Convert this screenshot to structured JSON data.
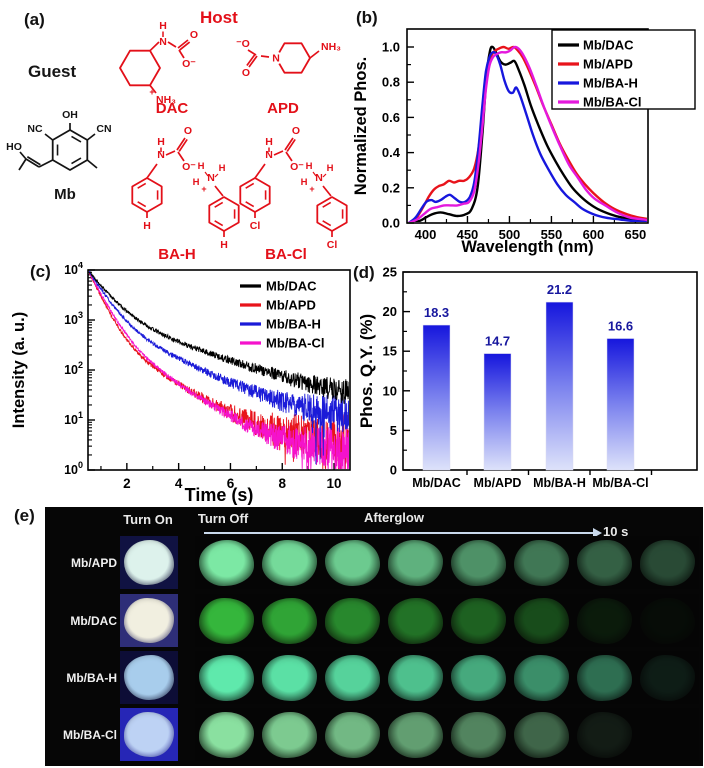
{
  "figure": {
    "panel_labels": {
      "a": "(a)",
      "b": "(b)",
      "c": "(c)",
      "d": "(d)",
      "e": "(e)"
    }
  },
  "panel_a": {
    "host_label": "Host",
    "guest_label": "Guest",
    "host_color": "#e31019",
    "guest_color": "#151515",
    "molecules": {
      "dac": "DAC",
      "apd": "APD",
      "mb": "Mb",
      "bah": "BA-H",
      "bacl": "BA-Cl"
    },
    "structures": {
      "dac": {
        "h": "H",
        "n": "N",
        "o": "O",
        "ominus": "O⁻",
        "plus": "+",
        "nh3": "NH₃"
      },
      "apd": {
        "ominus": "⁻O",
        "o": "O",
        "n": "N",
        "nh3": "NH₃"
      },
      "mb": {
        "oh": "OH",
        "nc": "NC",
        "cn": "CN",
        "ho": "HO"
      },
      "bah": {
        "h": "H",
        "n": "N",
        "o": "O",
        "ominus": "O⁻",
        "h1": "H",
        "h2": "H",
        "h3": "H",
        "n2": "N",
        "plus": "+",
        "para1": "H",
        "para2": "H"
      },
      "bacl": {
        "h": "H",
        "n": "N",
        "o": "O",
        "ominus": "O⁻",
        "h1": "H",
        "h2": "H",
        "h3": "H",
        "n2": "N",
        "plus": "+",
        "para1": "Cl",
        "para2": "Cl"
      }
    }
  },
  "chart_data": [
    {
      "id": "b",
      "type": "line",
      "xlabel": "Wavelength (nm)",
      "ylabel": "Normalized Phos.",
      "xlim": [
        378,
        665
      ],
      "ylim": [
        0,
        1.05
      ],
      "xticks": [
        400,
        450,
        500,
        550,
        600,
        650
      ],
      "yticks": [
        0.0,
        0.2,
        0.4,
        0.6,
        0.8,
        1.0
      ],
      "legend_position": "top-right",
      "legend_border": true,
      "series": [
        {
          "name": "Mb/DAC",
          "color": "#000000",
          "points": [
            [
              380,
              0
            ],
            [
              392,
              0.01
            ],
            [
              400,
              0.03
            ],
            [
              408,
              0.05
            ],
            [
              418,
              0.06
            ],
            [
              428,
              0.05
            ],
            [
              438,
              0.04
            ],
            [
              448,
              0.05
            ],
            [
              455,
              0.08
            ],
            [
              462,
              0.2
            ],
            [
              468,
              0.52
            ],
            [
              473,
              0.85
            ],
            [
              477,
              0.98
            ],
            [
              480,
              1.0
            ],
            [
              484,
              0.97
            ],
            [
              489,
              0.92
            ],
            [
              495,
              0.9
            ],
            [
              501,
              0.91
            ],
            [
              506,
              0.92
            ],
            [
              511,
              0.87
            ],
            [
              518,
              0.78
            ],
            [
              526,
              0.66
            ],
            [
              535,
              0.55
            ],
            [
              545,
              0.44
            ],
            [
              555,
              0.35
            ],
            [
              565,
              0.27
            ],
            [
              575,
              0.2
            ],
            [
              585,
              0.15
            ],
            [
              595,
              0.11
            ],
            [
              605,
              0.08
            ],
            [
              620,
              0.05
            ],
            [
              635,
              0.03
            ],
            [
              652,
              0.02
            ],
            [
              668,
              0.01
            ],
            [
              680,
              0
            ]
          ]
        },
        {
          "name": "Mb/APD",
          "color": "#e8131b",
          "points": [
            [
              380,
              0
            ],
            [
              388,
              0.02
            ],
            [
              396,
              0.08
            ],
            [
              404,
              0.15
            ],
            [
              410,
              0.19
            ],
            [
              416,
              0.21
            ],
            [
              422,
              0.22
            ],
            [
              428,
              0.24
            ],
            [
              434,
              0.23
            ],
            [
              440,
              0.24
            ],
            [
              446,
              0.24
            ],
            [
              452,
              0.26
            ],
            [
              458,
              0.31
            ],
            [
              463,
              0.42
            ],
            [
              468,
              0.62
            ],
            [
              472,
              0.8
            ],
            [
              476,
              0.92
            ],
            [
              481,
              0.97
            ],
            [
              487,
              0.99
            ],
            [
              493,
              1.0
            ],
            [
              499,
              0.99
            ],
            [
              505,
              1.0
            ],
            [
              510,
              0.98
            ],
            [
              516,
              0.94
            ],
            [
              523,
              0.87
            ],
            [
              531,
              0.78
            ],
            [
              540,
              0.67
            ],
            [
              550,
              0.56
            ],
            [
              560,
              0.45
            ],
            [
              570,
              0.36
            ],
            [
              580,
              0.28
            ],
            [
              590,
              0.22
            ],
            [
              600,
              0.17
            ],
            [
              612,
              0.12
            ],
            [
              625,
              0.08
            ],
            [
              640,
              0.05
            ],
            [
              655,
              0.03
            ],
            [
              668,
              0.02
            ],
            [
              680,
              0
            ]
          ]
        },
        {
          "name": "Mb/BA-H",
          "color": "#1717dd",
          "points": [
            [
              380,
              0
            ],
            [
              388,
              0.03
            ],
            [
              395,
              0.08
            ],
            [
              401,
              0.12
            ],
            [
              407,
              0.13
            ],
            [
              412,
              0.12
            ],
            [
              418,
              0.13
            ],
            [
              424,
              0.15
            ],
            [
              429,
              0.16
            ],
            [
              435,
              0.14
            ],
            [
              441,
              0.12
            ],
            [
              447,
              0.12
            ],
            [
              453,
              0.15
            ],
            [
              458,
              0.23
            ],
            [
              463,
              0.42
            ],
            [
              468,
              0.68
            ],
            [
              472,
              0.86
            ],
            [
              476,
              0.94
            ],
            [
              480,
              0.97
            ],
            [
              484,
              0.96
            ],
            [
              489,
              0.9
            ],
            [
              494,
              0.81
            ],
            [
              499,
              0.75
            ],
            [
              504,
              0.74
            ],
            [
              508,
              0.77
            ],
            [
              513,
              0.72
            ],
            [
              520,
              0.62
            ],
            [
              528,
              0.5
            ],
            [
              537,
              0.39
            ],
            [
              547,
              0.3
            ],
            [
              557,
              0.22
            ],
            [
              567,
              0.16
            ],
            [
              577,
              0.12
            ],
            [
              587,
              0.08
            ],
            [
              600,
              0.05
            ],
            [
              615,
              0.03
            ],
            [
              632,
              0.02
            ],
            [
              650,
              0.01
            ],
            [
              680,
              0
            ]
          ]
        },
        {
          "name": "Mb/BA-Cl",
          "color": "#e419dd",
          "points": [
            [
              380,
              0
            ],
            [
              390,
              0.02
            ],
            [
              398,
              0.05
            ],
            [
              406,
              0.08
            ],
            [
              414,
              0.09
            ],
            [
              422,
              0.1
            ],
            [
              430,
              0.1
            ],
            [
              438,
              0.1
            ],
            [
              446,
              0.11
            ],
            [
              452,
              0.12
            ],
            [
              458,
              0.18
            ],
            [
              463,
              0.33
            ],
            [
              468,
              0.56
            ],
            [
              472,
              0.76
            ],
            [
              476,
              0.89
            ],
            [
              480,
              0.94
            ],
            [
              485,
              0.96
            ],
            [
              490,
              0.97
            ],
            [
              496,
              0.97
            ],
            [
              501,
              0.98
            ],
            [
              506,
              1.0
            ],
            [
              511,
              0.99
            ],
            [
              517,
              0.95
            ],
            [
              524,
              0.88
            ],
            [
              532,
              0.78
            ],
            [
              541,
              0.66
            ],
            [
              551,
              0.54
            ],
            [
              561,
              0.43
            ],
            [
              571,
              0.33
            ],
            [
              581,
              0.26
            ],
            [
              591,
              0.19
            ],
            [
              601,
              0.14
            ],
            [
              614,
              0.1
            ],
            [
              628,
              0.06
            ],
            [
              644,
              0.03
            ],
            [
              660,
              0.02
            ],
            [
              680,
              0
            ]
          ]
        }
      ]
    },
    {
      "id": "c",
      "type": "line",
      "xlabel": "Time (s)",
      "ylabel": "Intensity (a. u.)",
      "xlim": [
        0.5,
        10.6
      ],
      "ylog": true,
      "ylim": [
        1,
        10000
      ],
      "xticks": [
        2,
        4,
        6,
        8,
        10
      ],
      "ytick_exponents": [
        0,
        1,
        2,
        3,
        4
      ],
      "legend_position": "top-right",
      "legend_border": false,
      "series": [
        {
          "name": "Mb/DAC",
          "color": "#000000",
          "i0": 10000,
          "a1": 8500,
          "tau1": 0.6,
          "a2": 1500,
          "tau2": 2.3,
          "noise_floor": 17
        },
        {
          "name": "Mb/APD",
          "color": "#e8131b",
          "i0": 10000,
          "a1": 9300,
          "tau1": 0.38,
          "a2": 700,
          "tau2": 1.3,
          "noise_floor": 4
        },
        {
          "name": "Mb/BA-H",
          "color": "#1b1bd8",
          "i0": 10000,
          "a1": 8800,
          "tau1": 0.5,
          "a2": 1200,
          "tau2": 1.7,
          "noise_floor": 9
        },
        {
          "name": "Mb/BA-Cl",
          "color": "#f512cc",
          "i0": 10000,
          "a1": 9200,
          "tau1": 0.42,
          "a2": 800,
          "tau2": 1.25,
          "noise_floor": 2.2
        }
      ]
    },
    {
      "id": "d",
      "type": "bar",
      "ylabel": "Phos. Q.Y. (%)",
      "ylim": [
        0,
        25
      ],
      "yticks": [
        0,
        5,
        10,
        15,
        20,
        25
      ],
      "categories": [
        "Mb/DAC",
        "Mb/APD",
        "Mb/BA-H",
        "Mb/BA-Cl"
      ],
      "values": [
        18.3,
        14.7,
        21.2,
        16.6
      ],
      "value_labels": [
        "18.3",
        "14.7",
        "21.2",
        "16.6"
      ],
      "value_label_color": "#17179e",
      "bar_gradient": [
        "#1616dd",
        "#7b82ee",
        "#dde2fa"
      ]
    }
  ],
  "panel_e": {
    "header": {
      "turn_on": "Turn On",
      "turn_off": "Turn Off",
      "afterglow": "Afterglow",
      "duration": "10 s"
    },
    "rows": [
      {
        "label": "Mb/APD",
        "turnon_bg": "#101242",
        "powder": "#ddf2ec",
        "glow": "#7ce8a4",
        "glow_dark": "#173722",
        "afterglow_opacity": [
          1,
          0.94,
          0.87,
          0.76,
          0.62,
          0.5,
          0.4,
          0.3
        ]
      },
      {
        "label": "Mb/DAC",
        "turnon_bg": "#2e2e78",
        "powder": "#f1efe0",
        "glow": "#35b63c",
        "glow_dark": "#15300f",
        "afterglow_opacity": [
          1,
          0.9,
          0.74,
          0.62,
          0.52,
          0.4,
          0.12,
          0.04
        ]
      },
      {
        "label": "Mb/BA-H",
        "turnon_bg": "#0d0d36",
        "powder": "#a8cdec",
        "glow": "#5fe9ac",
        "glow_dark": "#143326",
        "afterglow_opacity": [
          1,
          0.96,
          0.9,
          0.82,
          0.72,
          0.6,
          0.46,
          0.1
        ]
      },
      {
        "label": "Mb/BA-Cl",
        "turnon_bg": "#2626b6",
        "powder": "#bdd2f4",
        "glow": "#8ae0a0",
        "glow_dark": "#152d1a",
        "afterglow_opacity": [
          1,
          0.9,
          0.82,
          0.7,
          0.58,
          0.44,
          0.1,
          0
        ]
      }
    ]
  }
}
